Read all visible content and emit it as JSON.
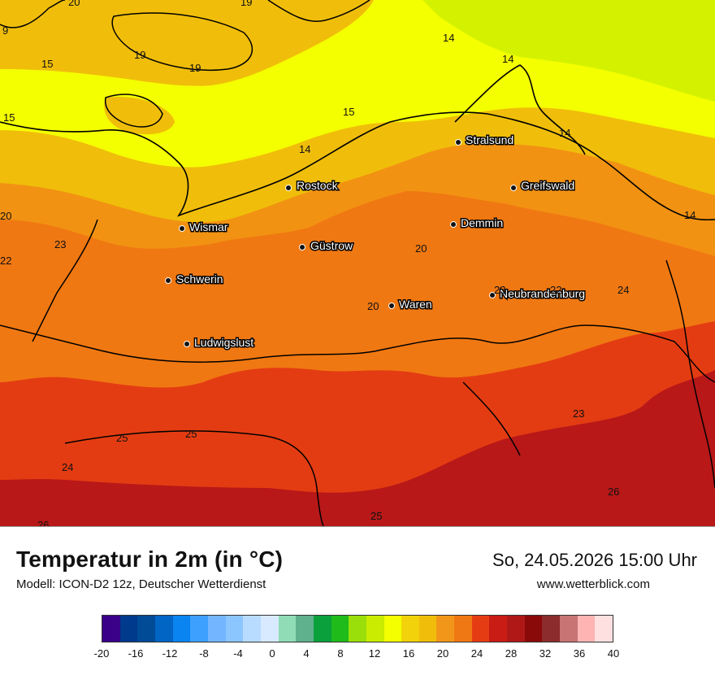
{
  "map": {
    "cities": [
      {
        "name": "Stralsund"
      },
      {
        "name": "Rostock"
      },
      {
        "name": "Greifswald"
      },
      {
        "name": "Wismar"
      },
      {
        "name": "Demmin"
      },
      {
        "name": "Güstrow"
      },
      {
        "name": "Schwerin"
      },
      {
        "name": "Neubrandenburg"
      },
      {
        "name": "Waren"
      },
      {
        "name": "Ludwigslust"
      }
    ],
    "contour_labels": [
      "20",
      "19",
      "15",
      "9",
      "15",
      "19",
      "19",
      "14",
      "14",
      "15",
      "14",
      "14",
      "14",
      "20",
      "23",
      "22",
      "20",
      "23",
      "22",
      "24",
      "20",
      "23",
      "25",
      "25",
      "24",
      "26",
      "25",
      "26"
    ]
  },
  "footer": {
    "title": "Temperatur in 2m (in °C)",
    "model": "Modell: ICON-D2 12z, Deutscher Wetterdienst",
    "datetime": "So, 24.05.2026 15:00 Uhr",
    "site": "www.wetterblick.com"
  },
  "legend": {
    "tick_labels": [
      "-20",
      "-16",
      "-12",
      "-8",
      "-4",
      "0",
      "4",
      "8",
      "12",
      "16",
      "20",
      "24",
      "28",
      "32",
      "36",
      "40"
    ],
    "colors": [
      "#3a0088",
      "#003a8c",
      "#004a96",
      "#0065c4",
      "#0a84f0",
      "#3da0ff",
      "#73b6ff",
      "#8cc6ff",
      "#b8dcff",
      "#d8eaff",
      "#8fdcb6",
      "#5fb08c",
      "#0aa03c",
      "#1fbb1a",
      "#9ade0a",
      "#c9ec00",
      "#f4ff00",
      "#f2d20a",
      "#f0be0a",
      "#f2961a",
      "#f07814",
      "#e63c14",
      "#c81c14",
      "#b01818",
      "#8a0a0a",
      "#8c2c2c",
      "#c87474",
      "#ffb4b4",
      "#ffe0e0"
    ]
  }
}
